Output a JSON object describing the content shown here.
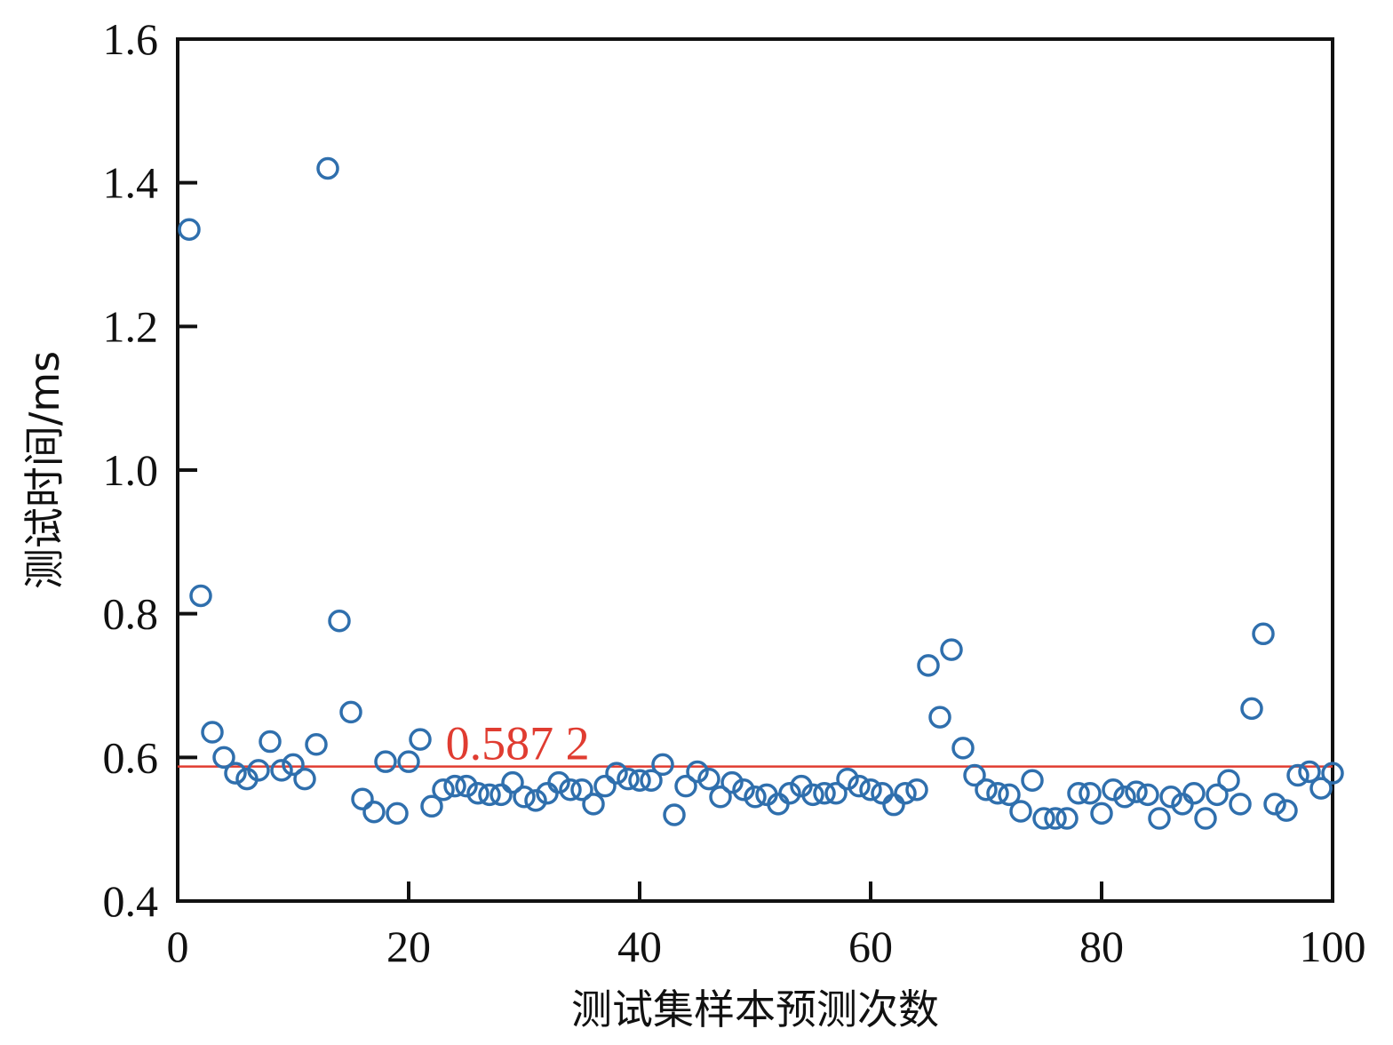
{
  "chart_data": {
    "type": "scatter",
    "title": "",
    "xlabel": "测试集样本预测次数",
    "ylabel": "测试时间/ms",
    "xlim": [
      0,
      100
    ],
    "ylim": [
      0.4,
      1.6
    ],
    "xticks": [
      "0",
      "20",
      "40",
      "60",
      "80",
      "100"
    ],
    "yticks": [
      "0.4",
      "0.6",
      "0.8",
      "1.0",
      "1.2",
      "1.4",
      "1.6"
    ],
    "grid": false,
    "legend": "none",
    "series": [
      {
        "marker": "open-circle",
        "color": "#2f6fad",
        "x": [
          1,
          2,
          3,
          4,
          5,
          6,
          7,
          8,
          9,
          10,
          11,
          12,
          13,
          14,
          15,
          16,
          17,
          18,
          19,
          20,
          21,
          22,
          23,
          24,
          25,
          26,
          27,
          28,
          29,
          30,
          31,
          32,
          33,
          34,
          35,
          36,
          37,
          38,
          39,
          40,
          41,
          42,
          43,
          44,
          45,
          46,
          47,
          48,
          49,
          50,
          51,
          52,
          53,
          54,
          55,
          56,
          57,
          58,
          59,
          60,
          61,
          62,
          63,
          64,
          65,
          66,
          67,
          68,
          69,
          70,
          71,
          72,
          73,
          74,
          75,
          76,
          77,
          78,
          79,
          80,
          81,
          82,
          83,
          84,
          85,
          86,
          87,
          88,
          89,
          90,
          91,
          92,
          93,
          94,
          95,
          96,
          97,
          98,
          99,
          100
        ],
        "y": [
          1.335,
          0.825,
          0.635,
          0.6,
          0.578,
          0.57,
          0.582,
          0.622,
          0.582,
          0.59,
          0.57,
          0.618,
          1.42,
          0.79,
          0.663,
          0.542,
          0.524,
          0.594,
          0.522,
          0.594,
          0.625,
          0.532,
          0.555,
          0.56,
          0.56,
          0.55,
          0.548,
          0.548,
          0.565,
          0.545,
          0.54,
          0.55,
          0.565,
          0.555,
          0.555,
          0.535,
          0.56,
          0.578,
          0.57,
          0.568,
          0.568,
          0.59,
          0.52,
          0.56,
          0.58,
          0.57,
          0.545,
          0.565,
          0.555,
          0.545,
          0.548,
          0.535,
          0.55,
          0.56,
          0.548,
          0.55,
          0.55,
          0.57,
          0.56,
          0.555,
          0.55,
          0.534,
          0.55,
          0.555,
          0.728,
          0.656,
          0.75,
          0.613,
          0.575,
          0.555,
          0.55,
          0.548,
          0.525,
          0.568,
          0.515,
          0.515,
          0.515,
          0.55,
          0.55,
          0.522,
          0.555,
          0.545,
          0.552,
          0.548,
          0.515,
          0.545,
          0.535,
          0.55,
          0.515,
          0.548,
          0.568,
          0.535,
          0.668,
          0.772,
          0.535,
          0.526,
          0.575,
          0.58,
          0.557,
          0.578
        ]
      }
    ],
    "reference_line": {
      "y": 0.5872,
      "label": "0.587 2",
      "color": "#e03c31"
    }
  }
}
